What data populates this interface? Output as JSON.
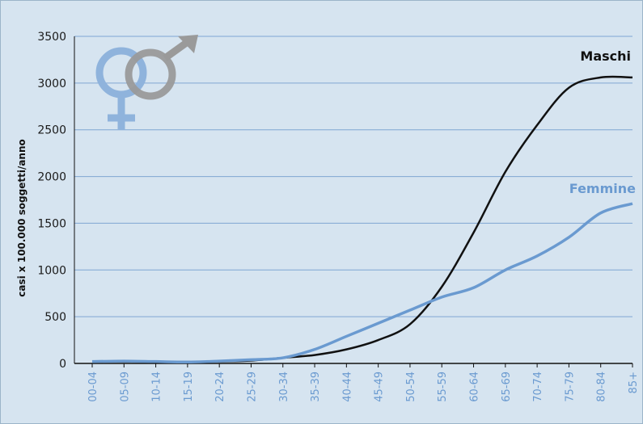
{
  "chart_data": {
    "type": "line",
    "title": "",
    "xlabel": "",
    "ylabel": "casi x 100.000 soggetti/anno",
    "ylim": [
      0,
      3500
    ],
    "yticks": [
      0,
      500,
      1000,
      1500,
      2000,
      2500,
      3000,
      3500
    ],
    "grid": true,
    "categories": [
      "00-04",
      "05-09",
      "10-14",
      "15-19",
      "20-24",
      "25-29",
      "30-34",
      "35-39",
      "40-44",
      "45-49",
      "50-54",
      "55-59",
      "60-64",
      "65-69",
      "70-74",
      "75-79",
      "80-84",
      "85+"
    ],
    "series": [
      {
        "name": "Maschi",
        "color": "#111111",
        "values": [
          20,
          20,
          15,
          10,
          20,
          30,
          60,
          90,
          150,
          250,
          420,
          820,
          1400,
          2050,
          2550,
          2950,
          3060,
          3060
        ]
      },
      {
        "name": "Femmine",
        "color": "#6a9ad0",
        "values": [
          20,
          25,
          20,
          15,
          25,
          40,
          60,
          150,
          290,
          430,
          570,
          710,
          810,
          1000,
          1150,
          1350,
          1610,
          1710
        ]
      }
    ],
    "icons": [
      "female-symbol-icon",
      "male-symbol-icon"
    ]
  }
}
